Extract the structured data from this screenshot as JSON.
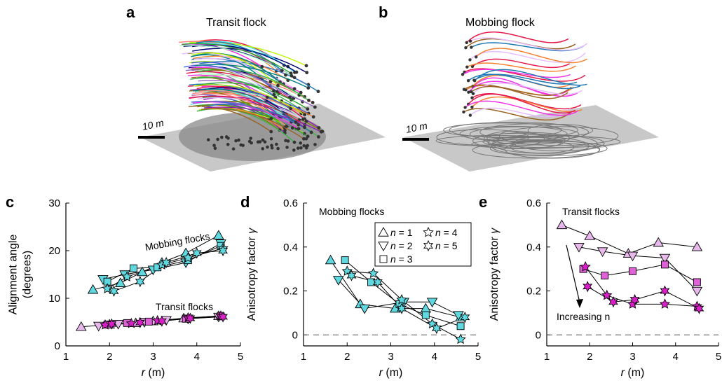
{
  "panel_labels": {
    "a": "a",
    "b": "b",
    "c": "c",
    "d": "d",
    "e": "e"
  },
  "panel_a": {
    "title": "Transit flock",
    "scale_label": "10 m"
  },
  "panel_b": {
    "title": "Mobbing flock",
    "scale_label": "10 m"
  },
  "colors": {
    "n1": "#e8b8ec",
    "n2": "#e8b8ec",
    "n3": "#e060d8",
    "n4": "#d81fc8",
    "n5": "#d81fc8",
    "mob": "#5fd8e0",
    "dash": "#555555",
    "ground": "#c8c8c8"
  },
  "chart_data": [
    {
      "type": "scatter",
      "id": "c",
      "xlabel": "r (m)",
      "ylabel": "Alignment angle (degrees)",
      "xlim": [
        1,
        5
      ],
      "ylim": [
        0,
        30
      ],
      "xticks": [
        1,
        2,
        3,
        4,
        5
      ],
      "yticks": [
        0,
        10,
        20,
        30
      ],
      "annotations": [
        {
          "text": "Mobbing flocks"
        },
        {
          "text": "Transit flocks"
        }
      ],
      "series": [
        {
          "group": "mobbing",
          "n": 1,
          "marker": "tri-up",
          "points": [
            [
              1.62,
              11.8
            ],
            [
              2.25,
              13.2
            ],
            [
              2.75,
              15.5
            ],
            [
              3.2,
              17.5
            ],
            [
              3.75,
              19.5
            ],
            [
              4.5,
              23.2
            ]
          ]
        },
        {
          "group": "mobbing",
          "n": 2,
          "marker": "tri-down",
          "points": [
            [
              1.85,
              14.0
            ],
            [
              2.35,
              15.0
            ],
            [
              3.0,
              16.0
            ],
            [
              3.75,
              17.5
            ],
            [
              4.55,
              21.5
            ]
          ]
        },
        {
          "group": "mobbing",
          "n": 3,
          "marker": "square",
          "points": [
            [
              1.95,
              13.5
            ],
            [
              2.55,
              16.3
            ],
            [
              3.1,
              16.5
            ],
            [
              3.8,
              18.0
            ],
            [
              4.55,
              21.0
            ]
          ]
        },
        {
          "group": "mobbing",
          "n": 4,
          "marker": "star4",
          "points": [
            [
              1.95,
              12.0
            ],
            [
              2.4,
              14.5
            ],
            [
              3.2,
              17.0
            ],
            [
              3.8,
              18.5
            ],
            [
              4.6,
              20.5
            ]
          ]
        },
        {
          "group": "mobbing",
          "n": 5,
          "marker": "star5",
          "points": [
            [
              2.1,
              11.5
            ],
            [
              2.7,
              13.5
            ],
            [
              3.3,
              17.5
            ],
            [
              4.0,
              19.5
            ],
            [
              4.6,
              20.0
            ]
          ]
        },
        {
          "group": "transit",
          "n": 1,
          "marker": "tri-up",
          "points": [
            [
              1.35,
              4.0
            ],
            [
              2.0,
              4.5
            ],
            [
              2.6,
              4.8
            ],
            [
              3.0,
              5.2
            ],
            [
              3.7,
              5.8
            ],
            [
              4.5,
              6.3
            ]
          ]
        },
        {
          "group": "transit",
          "n": 2,
          "marker": "tri-down",
          "points": [
            [
              1.75,
              4.2
            ],
            [
              2.2,
              4.6
            ],
            [
              2.8,
              5.0
            ],
            [
              3.3,
              5.4
            ],
            [
              3.8,
              5.7
            ],
            [
              4.5,
              6.1
            ]
          ]
        },
        {
          "group": "transit",
          "n": 3,
          "marker": "square",
          "points": [
            [
              1.95,
              4.5
            ],
            [
              2.4,
              4.8
            ],
            [
              2.9,
              5.1
            ],
            [
              3.75,
              5.7
            ],
            [
              4.55,
              6.2
            ]
          ]
        },
        {
          "group": "transit",
          "n": 4,
          "marker": "star4",
          "points": [
            [
              1.9,
              4.4
            ],
            [
              2.5,
              4.7
            ],
            [
              3.1,
              5.3
            ],
            [
              3.8,
              5.9
            ],
            [
              4.55,
              6.3
            ]
          ]
        },
        {
          "group": "transit",
          "n": 5,
          "marker": "star5",
          "points": [
            [
              2.05,
              4.6
            ],
            [
              2.7,
              4.9
            ],
            [
              3.2,
              5.2
            ],
            [
              3.85,
              5.8
            ],
            [
              4.6,
              6.1
            ]
          ]
        }
      ]
    },
    {
      "type": "scatter",
      "id": "d",
      "title": "Mobbing flocks",
      "xlabel": "r (m)",
      "ylabel": "Anisotropy factor γ",
      "xlim": [
        1,
        5
      ],
      "ylim": [
        -0.05,
        0.6
      ],
      "xticks": [
        1,
        2,
        3,
        4,
        5
      ],
      "yticks": [
        0,
        0.2,
        0.4,
        0.6
      ],
      "zero_line": true,
      "legend": {
        "placement": "upper-right",
        "entries": [
          {
            "marker": "tri-up",
            "prefix": "n",
            "eq": " = 1"
          },
          {
            "marker": "star4",
            "prefix": "n",
            "eq": " = 4"
          },
          {
            "marker": "tri-down",
            "prefix": "n",
            "eq": " = 2"
          },
          {
            "marker": "star5",
            "prefix": "n",
            "eq": " = 5"
          },
          {
            "marker": "square",
            "prefix": "n",
            "eq": " = 3"
          }
        ]
      },
      "series": [
        {
          "n": 1,
          "marker": "tri-up",
          "points": [
            [
              1.62,
              0.34
            ],
            [
              2.3,
              0.14
            ],
            [
              3.1,
              0.12
            ],
            [
              3.8,
              0.12
            ],
            [
              4.6,
              0.08
            ]
          ]
        },
        {
          "n": 2,
          "marker": "tri-down",
          "points": [
            [
              1.8,
              0.25
            ],
            [
              2.4,
              0.12
            ],
            [
              3.3,
              0.15
            ],
            [
              3.95,
              0.15
            ],
            [
              4.55,
              0.09
            ]
          ]
        },
        {
          "n": 3,
          "marker": "square",
          "points": [
            [
              1.95,
              0.34
            ],
            [
              2.55,
              0.24
            ],
            [
              3.2,
              0.14
            ],
            [
              3.8,
              0.09
            ],
            [
              4.6,
              0.04
            ]
          ]
        },
        {
          "n": 4,
          "marker": "star4",
          "points": [
            [
              2.0,
              0.29
            ],
            [
              2.6,
              0.28
            ],
            [
              3.25,
              0.16
            ],
            [
              3.95,
              0.05
            ],
            [
              4.6,
              -0.02
            ]
          ]
        },
        {
          "n": 5,
          "marker": "star5",
          "points": [
            [
              2.1,
              0.27
            ],
            [
              2.7,
              0.24
            ],
            [
              3.25,
              0.12
            ],
            [
              4.05,
              0.03
            ],
            [
              4.7,
              0.08
            ]
          ]
        }
      ]
    },
    {
      "type": "scatter",
      "id": "e",
      "title": "Transit flocks",
      "xlabel": "r (m)",
      "ylabel": "Anisotropy factor γ",
      "xlim": [
        1,
        5
      ],
      "ylim": [
        -0.05,
        0.6
      ],
      "xticks": [
        1,
        2,
        3,
        4,
        5
      ],
      "yticks": [
        0,
        0.2,
        0.4,
        0.6
      ],
      "zero_line": true,
      "annotations": [
        {
          "text": "Increasing n"
        }
      ],
      "series": [
        {
          "n": 1,
          "marker": "tri-up",
          "points": [
            [
              1.35,
              0.5
            ],
            [
              2.0,
              0.45
            ],
            [
              2.9,
              0.37
            ],
            [
              3.6,
              0.42
            ],
            [
              4.5,
              0.4
            ]
          ]
        },
        {
          "n": 2,
          "marker": "tri-down",
          "points": [
            [
              1.75,
              0.4
            ],
            [
              2.3,
              0.38
            ],
            [
              3.0,
              0.36
            ],
            [
              3.75,
              0.35
            ],
            [
              4.5,
              0.2
            ]
          ]
        },
        {
          "n": 3,
          "marker": "square",
          "points": [
            [
              1.85,
              0.3
            ],
            [
              2.35,
              0.27
            ],
            [
              3.0,
              0.29
            ],
            [
              3.75,
              0.32
            ],
            [
              4.5,
              0.24
            ]
          ]
        },
        {
          "n": 4,
          "marker": "star4",
          "points": [
            [
              1.9,
              0.31
            ],
            [
              2.4,
              0.18
            ],
            [
              3.0,
              0.14
            ],
            [
              3.75,
              0.14
            ],
            [
              4.5,
              0.13
            ]
          ]
        },
        {
          "n": 5,
          "marker": "star5",
          "points": [
            [
              1.95,
              0.22
            ],
            [
              2.55,
              0.15
            ],
            [
              3.05,
              0.16
            ],
            [
              3.75,
              0.2
            ],
            [
              4.55,
              0.12
            ]
          ]
        }
      ]
    }
  ]
}
